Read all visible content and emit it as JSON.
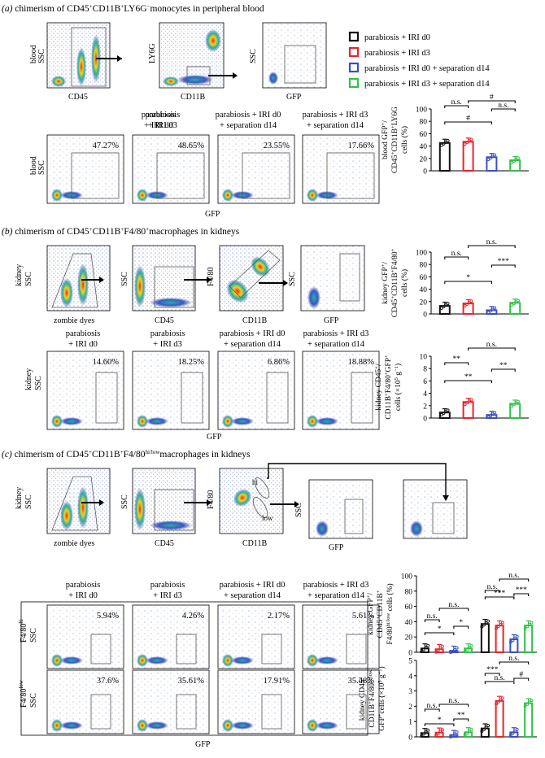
{
  "colors": {
    "black": "#111111",
    "red": "#e8242b",
    "blue": "#3b4fc4",
    "green": "#31c04a",
    "flow_bg": "#ffffff",
    "dot": "#2d3ea8",
    "hot": "#f2d022",
    "hotter": "#e83a1c",
    "mid": "#25a8a0"
  },
  "sections": {
    "a": {
      "letter": "(a)",
      "title_rest": " chimerism of CD45",
      "title_tail": "monocytes in peripheral blood"
    },
    "b": {
      "letter": "(b)",
      "title_rest": " chimerism of CD45",
      "title_tail": "macrophages in kidneys"
    },
    "c": {
      "letter": "(c)",
      "title_rest": " chimerism of CD45",
      "title_tail": "macrophages in kidneys"
    }
  },
  "legend": [
    {
      "label": "parabiosis + IRI d0",
      "color": "#111111"
    },
    {
      "label": "parabiosis + IRI d3",
      "color": "#e8242b"
    },
    {
      "label": "parabiosis + IRI d0 + separation d14",
      "color": "#3b4fc4"
    },
    {
      "label": "parabiosis + IRI d3 + separation d14",
      "color": "#31c04a"
    }
  ],
  "axis_labels": {
    "blood": "blood",
    "ssc": "SSC",
    "cd45": "CD45",
    "ly6g": "LY6G",
    "cd11b": "CD11B",
    "gfp": "GFP",
    "kidney": "kidney",
    "zombie": "zombie dyes",
    "f480": "F4/80",
    "hi": "hi",
    "low": "low",
    "f480hi": "F4/80",
    "f480low": "F4/80",
    "sup_hi": "hi",
    "sup_low": "low"
  },
  "group_headers": [
    [
      "parabiosis",
      "+ IRI d0"
    ],
    [
      "parabiosis",
      "+ IRI d3"
    ],
    [
      "parabiosis + IRI d0",
      "+ separation d14"
    ],
    [
      "parabiosis + IRI d3",
      "+ separation d14"
    ]
  ],
  "percentages": {
    "a": [
      "47.27%",
      "48.65%",
      "23.55%",
      "17.66%"
    ],
    "b": [
      "14.60%",
      "18.25%",
      "6.86%",
      "18.88%"
    ],
    "c_hi": [
      "5.94%",
      "4.26%",
      "2.17%",
      "5.61%"
    ],
    "c_low": [
      "37.6%",
      "35.61%",
      "17.91%",
      "35.48%"
    ]
  },
  "chart_data": [
    {
      "type": "bar",
      "id": "a_pct",
      "ylabel": [
        "blood GFP",
        "CD45",
        "CD11B",
        "LY6G",
        "cells (%)"
      ],
      "ylim": [
        0,
        100
      ],
      "yticks": [
        "0",
        "20",
        "40",
        "60",
        "80",
        "100"
      ],
      "categories": [
        "IRI d0",
        "IRI d3",
        "IRI d0 + sep d14",
        "IRI d3 + sep d14"
      ],
      "values": [
        45,
        47,
        22,
        17
      ],
      "annotations": [
        "n.s.",
        "#",
        "#",
        "n.s."
      ]
    },
    {
      "type": "bar",
      "id": "b_pct",
      "ylabel": [
        "kidney GFP",
        "CD45",
        "CD11B",
        "F4/80",
        "cells (%)"
      ],
      "ylim": [
        0,
        100
      ],
      "yticks": [
        "0",
        "20",
        "40",
        "60",
        "80",
        "100"
      ],
      "categories": [
        "IRI d0",
        "IRI d3",
        "IRI d0 + sep d14",
        "IRI d3 + sep d14"
      ],
      "values": [
        13,
        17,
        6,
        18
      ],
      "annotations": [
        "n.s.",
        "n.s.",
        "*",
        "***"
      ]
    },
    {
      "type": "bar",
      "id": "b_count",
      "ylabel": [
        "kidney CD45",
        "CD11B",
        "F4/80",
        "GFP",
        "cells (×10",
        "5",
        " g",
        "−1",
        ")"
      ],
      "ylim": [
        0,
        10
      ],
      "yticks": [
        "0",
        "2",
        "4",
        "6",
        "8",
        "10"
      ],
      "categories": [
        "IRI d0",
        "IRI d3",
        "IRI d0 + sep d14",
        "IRI d3 + sep d14"
      ],
      "values": [
        0.9,
        2.6,
        0.5,
        2.3
      ],
      "annotations": [
        "**",
        "n.s.",
        "**",
        "**"
      ]
    },
    {
      "type": "bar",
      "id": "c_pct",
      "ylabel": [
        "kidney GFP",
        "CD45",
        "CD11B",
        "F4/80",
        "hi/low",
        " cells (%)"
      ],
      "ylim": [
        0,
        100
      ],
      "yticks": [
        "0",
        "20",
        "40",
        "60",
        "80",
        "100"
      ],
      "series": [
        {
          "name": "F4/80 hi",
          "values": [
            5,
            4,
            2,
            5
          ]
        },
        {
          "name": "F4/80 low",
          "values": [
            37,
            35,
            17,
            35
          ]
        }
      ],
      "annotations": [
        "n.s.",
        "n.s.",
        "*",
        "*",
        "n.s.",
        "n.s.",
        "***",
        "***"
      ]
    },
    {
      "type": "bar",
      "id": "c_count",
      "ylabel": [
        "kidney CD45",
        "CD11B",
        "F4/80",
        "hi/low",
        "GFP",
        "cells (×10",
        "5",
        " g",
        "−1",
        ")"
      ],
      "ylim": [
        0,
        5
      ],
      "yticks": [
        "0",
        "1",
        "2",
        "3",
        "4",
        "5"
      ],
      "series": [
        {
          "name": "F4/80 hi",
          "values": [
            0.25,
            0.28,
            0.12,
            0.3
          ]
        },
        {
          "name": "F4/80 low",
          "values": [
            0.55,
            2.35,
            0.3,
            2.2
          ]
        }
      ],
      "annotations": [
        "n.s.",
        "n.s.",
        "*",
        "**",
        "***",
        "n.s.",
        "n.s.",
        "#"
      ]
    }
  ]
}
